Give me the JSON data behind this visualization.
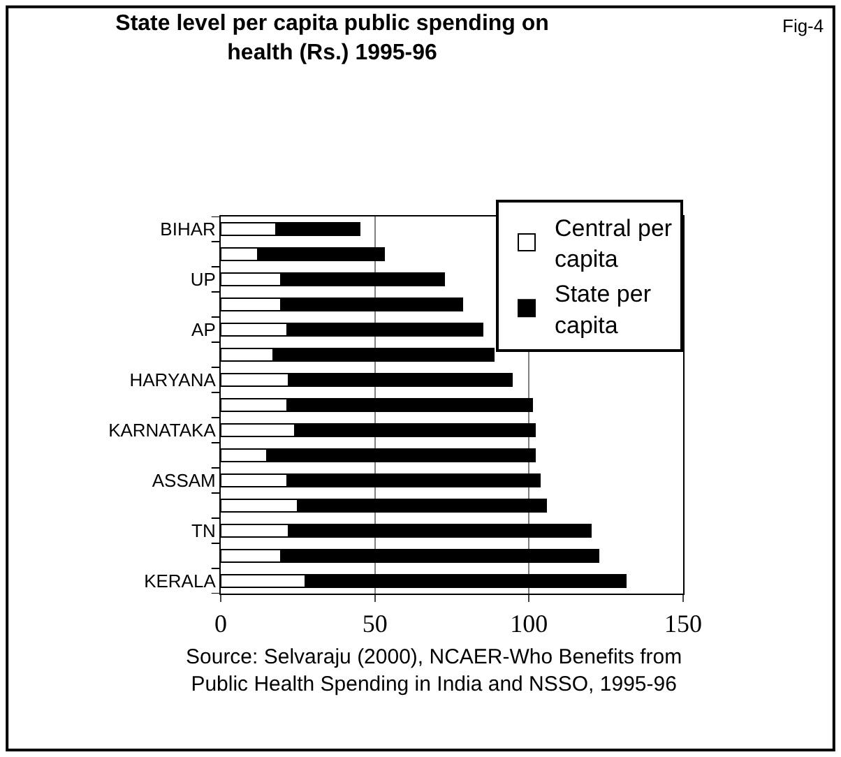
{
  "chart_data": {
    "type": "bar",
    "orientation": "horizontal",
    "stacked": true,
    "title": "State level per capita public spending on health (Rs.) 1995-96",
    "annotations": [
      "Fig-4",
      "Source: Selvaraju (2000), NCAER-Who Benefits from Public Health Spending in India and NSSO, 1995-96"
    ],
    "categories": [
      "BIHAR",
      null,
      "UP",
      null,
      "AP",
      null,
      "HARYANA",
      null,
      "KARNATAKA",
      null,
      "ASSAM",
      null,
      "TN",
      null,
      "KERALA"
    ],
    "series": [
      {
        "name": "Central per capita",
        "color": "#ffffff",
        "values": [
          18,
          12,
          19.5,
          19.5,
          21.5,
          17,
          22,
          21.5,
          24,
          15,
          21.5,
          25,
          22,
          19.5,
          27.5
        ]
      },
      {
        "name": "State per capita",
        "color": "#000000",
        "values": [
          27,
          41,
          53,
          59,
          63.5,
          71.5,
          72.5,
          79.5,
          78,
          87,
          82,
          80.5,
          98,
          103,
          104
        ]
      }
    ],
    "xlim": [
      0,
      150
    ],
    "xticks": [
      0,
      50,
      100,
      150
    ],
    "grid": "x",
    "legend": "top right"
  }
}
